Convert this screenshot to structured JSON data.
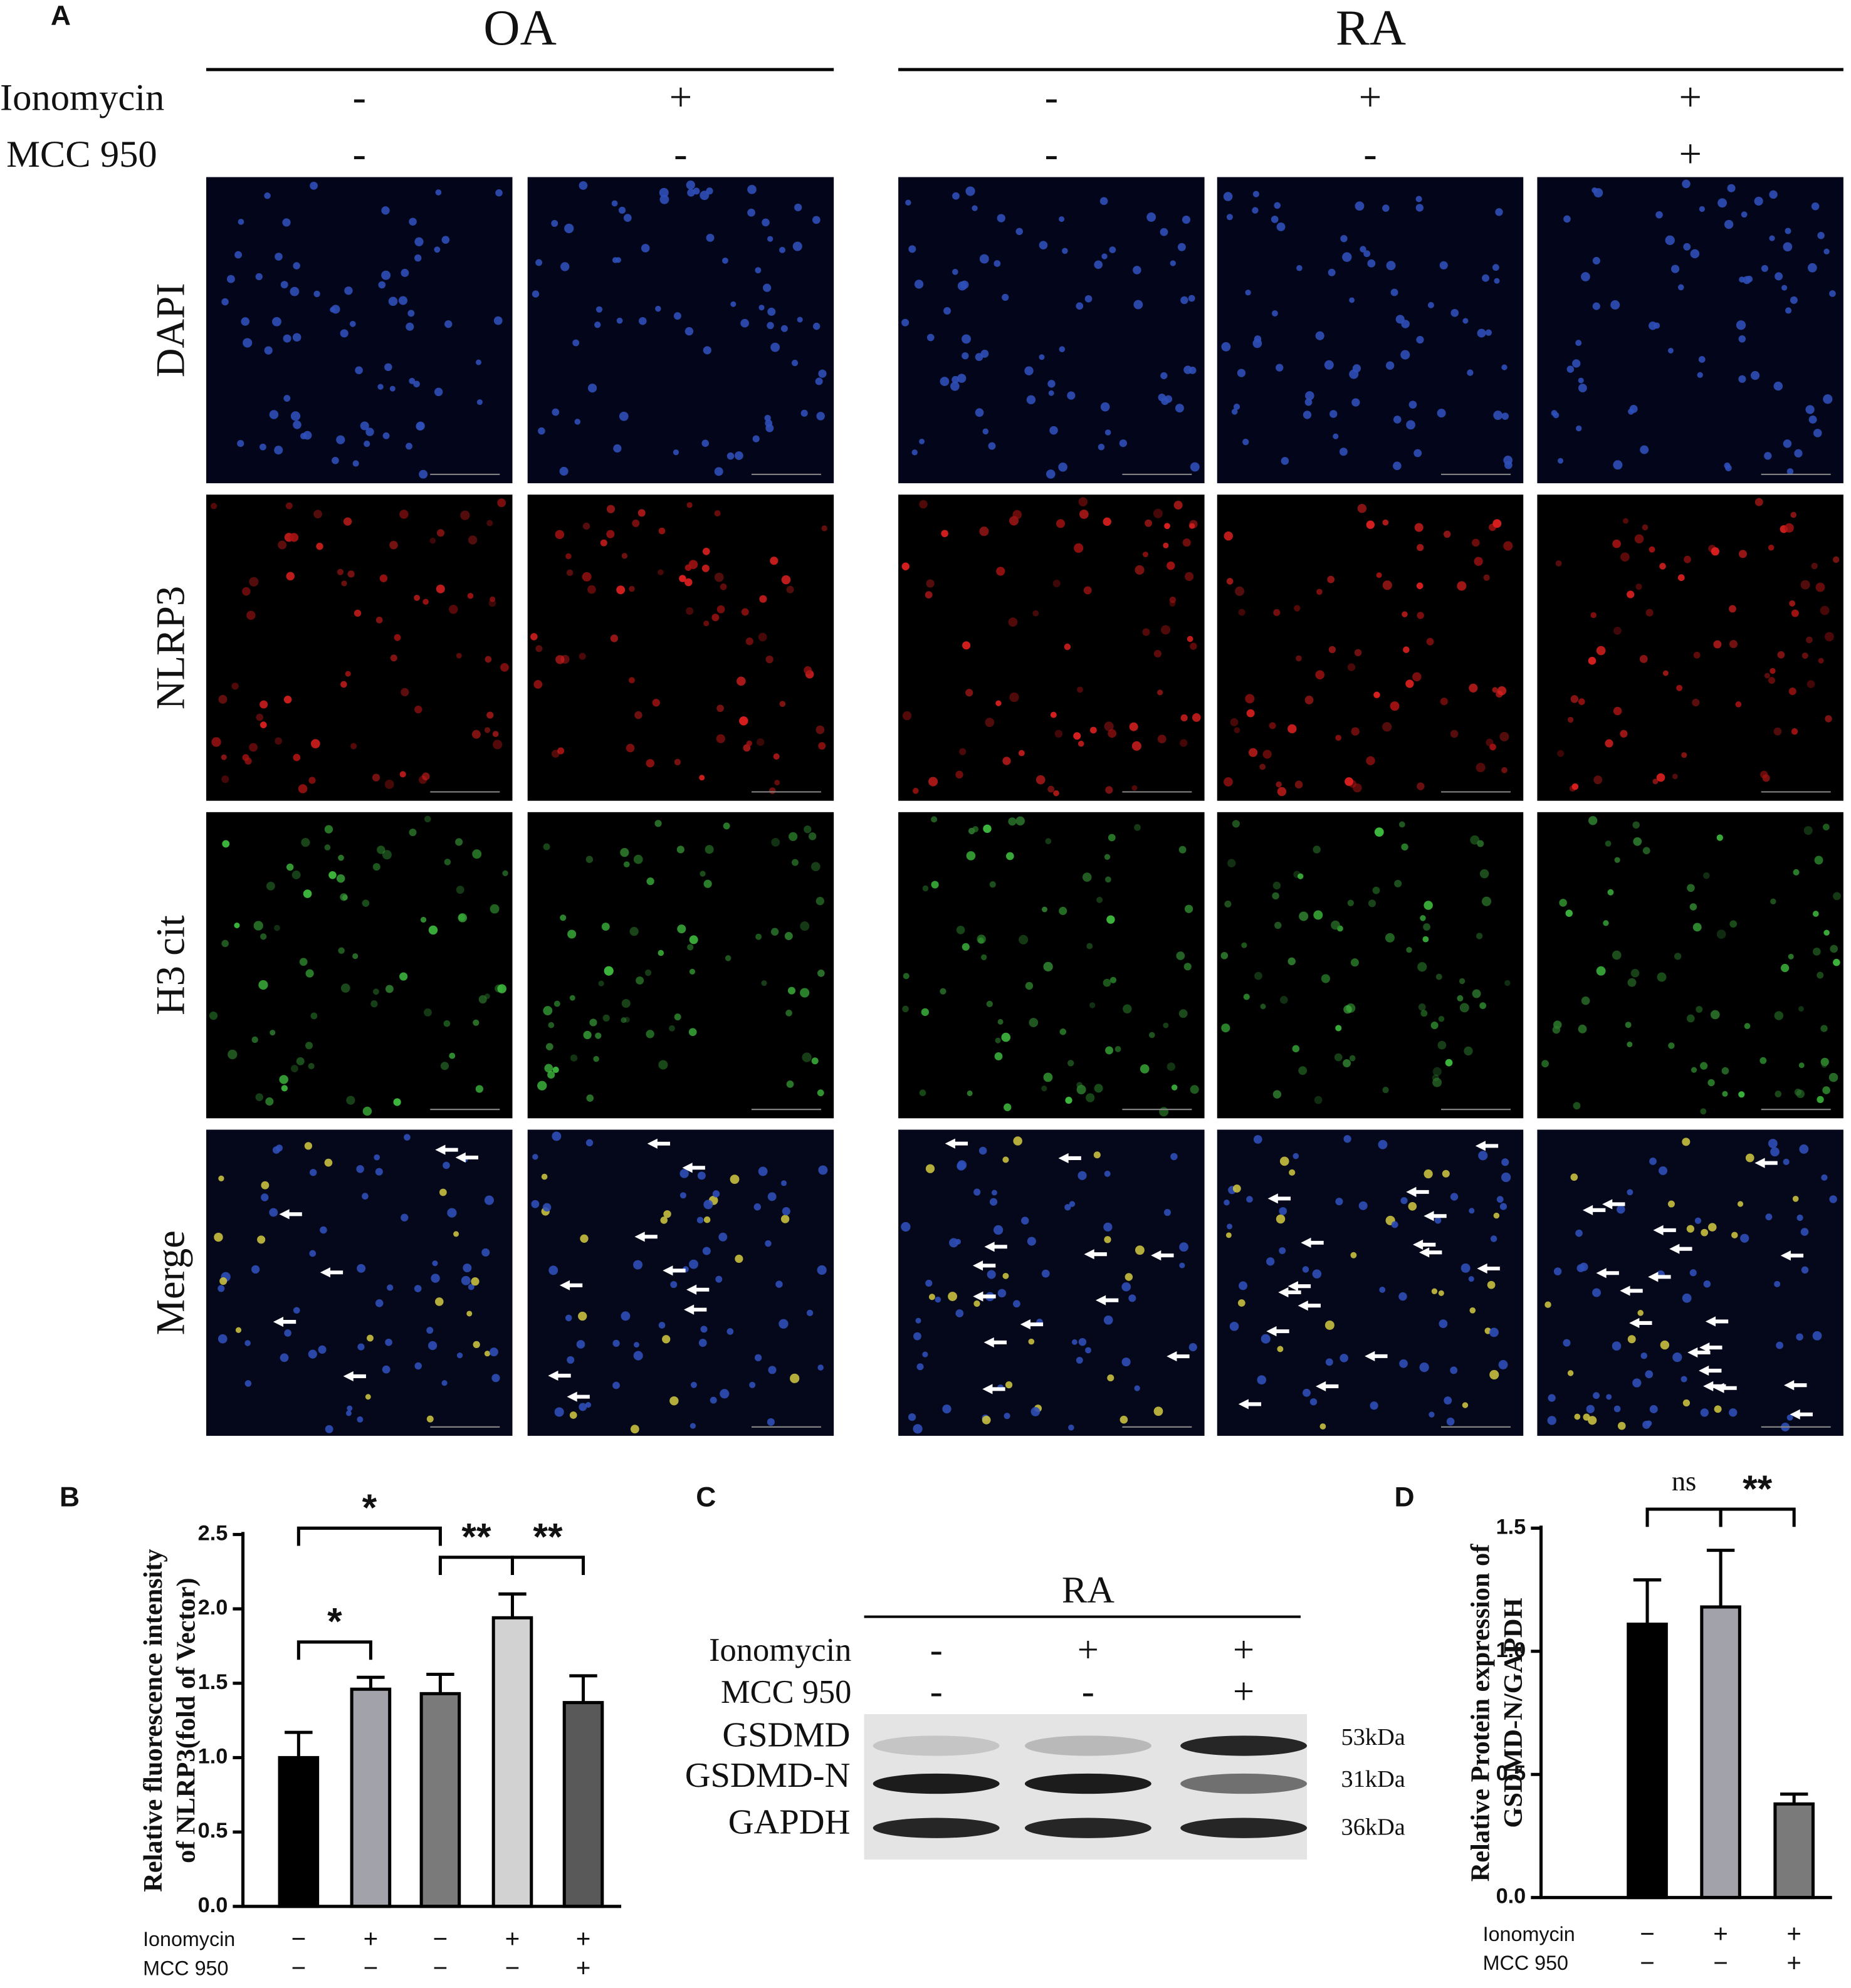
{
  "panel_a": {
    "label": "A",
    "groups": [
      {
        "label": "OA"
      },
      {
        "label": "RA"
      }
    ],
    "treatments": [
      {
        "label": "Ionomycin",
        "values": [
          "-",
          "+",
          "-",
          "+",
          "+"
        ]
      },
      {
        "label": "MCC 950",
        "values": [
          "-",
          "-",
          "-",
          "-",
          "+"
        ]
      }
    ],
    "rows": [
      "DAPI",
      "NLRP3",
      "H3 cit",
      "Merge"
    ]
  },
  "chart_data": [
    {
      "type": "bar",
      "panel_label": "B",
      "y_label": [
        "Relative fluorescence intensity",
        "of NLRP3(fold of Vector)"
      ],
      "values": [
        1.0,
        1.46,
        1.43,
        1.94,
        1.37
      ],
      "errors": [
        0.17,
        0.08,
        0.13,
        0.16,
        0.18
      ],
      "colors": [
        "#000000",
        "#a2a2aa",
        "#7a7a7a",
        "#d2d2d2",
        "#595959"
      ],
      "ylim": [
        0,
        2.5
      ],
      "yticks": [
        {
          "value": 0,
          "label": "0.0"
        },
        0.5,
        {
          "value": 1,
          "label": "1.0"
        },
        1.5,
        {
          "value": 2,
          "label": "2.0"
        },
        2.5
      ],
      "treatments": [
        {
          "label": "Ionomycin",
          "values": [
            "−",
            "+",
            "−",
            "+",
            "+"
          ]
        },
        {
          "label": "MCC 950",
          "values": [
            "−",
            "−",
            "−",
            "−",
            "+"
          ]
        }
      ],
      "significance": [
        {
          "from": 0,
          "to": 1,
          "label": "*"
        },
        {
          "from": 0,
          "to": 2,
          "label": "*"
        },
        {
          "from": 2,
          "to": 3,
          "label": "**"
        },
        {
          "from": 3,
          "to": 4,
          "label": "**"
        }
      ]
    },
    {
      "type": "bar",
      "panel_label": "D",
      "y_label": [
        "Relative Protein expression of",
        "GSDMD-N/GAPDH"
      ],
      "values": [
        1.11,
        1.18,
        0.38
      ],
      "errors": [
        0.18,
        0.23,
        0.04
      ],
      "colors": [
        "#000000",
        "#a2a2aa",
        "#7a7a7a"
      ],
      "ylim": [
        0,
        1.5
      ],
      "yticks": [
        {
          "value": 0,
          "label": "0.0"
        },
        0.5,
        {
          "value": 1,
          "label": "1.0"
        },
        1.5
      ],
      "treatments": [
        {
          "label": "Ionomycin",
          "values": [
            "−",
            "+",
            "+"
          ]
        },
        {
          "label": "MCC 950",
          "values": [
            "−",
            "−",
            "+"
          ]
        }
      ],
      "significance": [
        {
          "from": 0,
          "to": 1,
          "label": "ns"
        },
        {
          "from": 1,
          "to": 2,
          "label": "**"
        }
      ]
    }
  ],
  "panel_c": {
    "label": "C",
    "group": "RA",
    "treatments": [
      {
        "label": "Ionomycin",
        "values": [
          "-",
          "+",
          "+"
        ]
      },
      {
        "label": "MCC 950",
        "values": [
          "-",
          "-",
          "+"
        ]
      }
    ],
    "bands": [
      {
        "label": "GSDMD",
        "size": "53kDa"
      },
      {
        "label": "GSDMD-N",
        "size": "31kDa"
      },
      {
        "label": "GAPDH",
        "size": "36kDa"
      }
    ]
  }
}
